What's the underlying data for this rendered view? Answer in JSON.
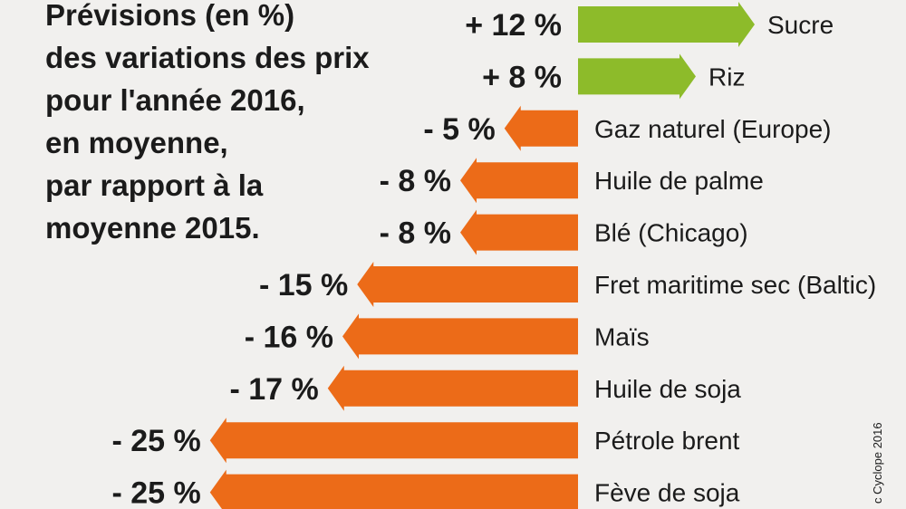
{
  "title_lines": [
    "Prévisions (en %)",
    "des variations des prix",
    "pour l'année 2016,",
    "en moyenne,",
    "par rapport à la",
    "moyenne 2015."
  ],
  "credit": "c Cyclope 2016",
  "colors": {
    "positive": "#8dbb2a",
    "negative": "#ec6b18",
    "background": "#f1f0ee"
  },
  "chart_data": {
    "type": "bar",
    "orientation": "horizontal",
    "unit": "%",
    "categories": [
      "Sucre",
      "Riz",
      "Gaz naturel (Europe)",
      "Huile de palme",
      "Blé (Chicago)",
      "Fret maritime sec (Baltic)",
      "Maïs",
      "Huile de soja",
      "Pétrole brent",
      "Fève de soja"
    ],
    "values": [
      12,
      8,
      -5,
      -8,
      -8,
      -15,
      -16,
      -17,
      -25,
      -25
    ],
    "value_labels": [
      "+ 12 %",
      "+ 8 %",
      "- 5 %",
      "- 8 %",
      "- 8 %",
      "- 15 %",
      "- 16 %",
      "- 17 %",
      "- 25 %",
      "- 25 %"
    ],
    "title": "Prévisions (en %) des variations des prix pour l'année 2016, en moyenne, par rapport à la moyenne 2015.",
    "xlabel": "",
    "ylabel": ""
  }
}
